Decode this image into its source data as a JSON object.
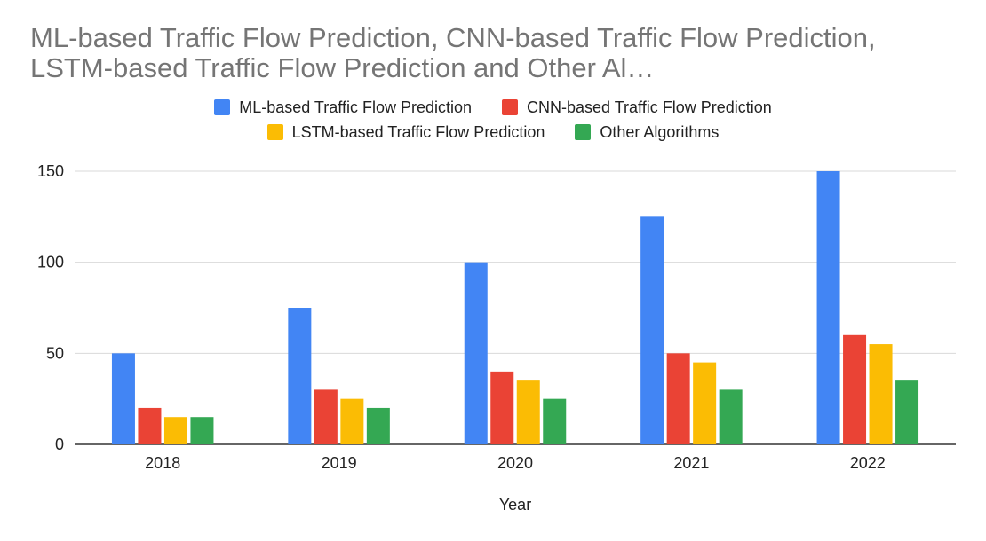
{
  "chart_data": {
    "type": "bar",
    "title": "ML-based Traffic Flow Prediction, CNN-based Traffic Flow Prediction, LSTM-based Traffic Flow Prediction and Other Al…",
    "xlabel": "Year",
    "ylabel": "",
    "categories": [
      "2018",
      "2019",
      "2020",
      "2021",
      "2022"
    ],
    "ylim": [
      0,
      150
    ],
    "yticks": [
      0,
      50,
      100,
      150
    ],
    "grid": true,
    "legend_position": "top",
    "series": [
      {
        "name": "ML-based Traffic Flow Prediction",
        "color": "#4285F4",
        "values": [
          50,
          75,
          100,
          125,
          150
        ]
      },
      {
        "name": "CNN-based Traffic Flow Prediction",
        "color": "#EA4335",
        "values": [
          20,
          30,
          40,
          50,
          60
        ]
      },
      {
        "name": "LSTM-based Traffic Flow Prediction",
        "color": "#FBBC04",
        "values": [
          15,
          25,
          35,
          45,
          55
        ]
      },
      {
        "name": "Other Algorithms",
        "color": "#34A853",
        "values": [
          15,
          20,
          25,
          30,
          35
        ]
      }
    ]
  }
}
